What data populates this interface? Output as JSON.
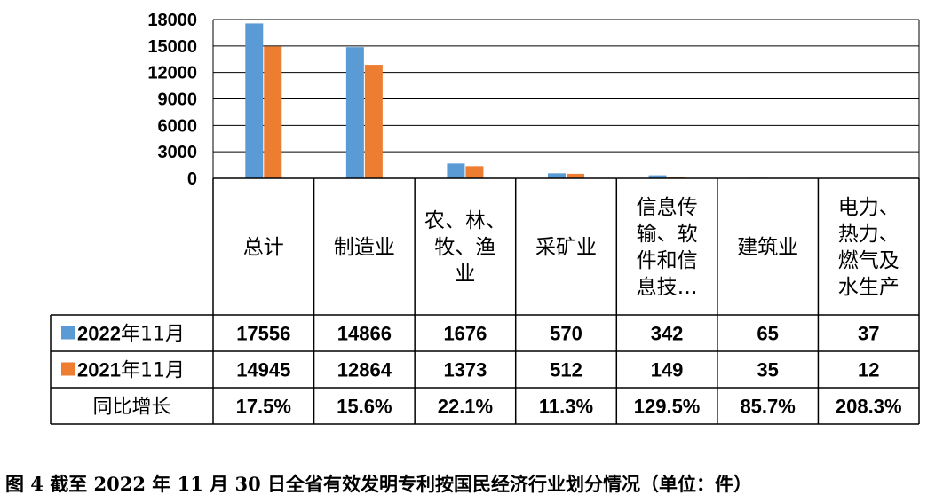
{
  "chart_data": {
    "type": "bar",
    "ylim": [
      0,
      18000
    ],
    "yticks": [
      "0",
      "3000",
      "6000",
      "9000",
      "12000",
      "15000",
      "18000"
    ],
    "categories": [
      [
        "总计"
      ],
      [
        "制造业"
      ],
      [
        "农、林、",
        "牧、渔",
        "业"
      ],
      [
        "采矿业"
      ],
      [
        "信息传",
        "输、软",
        "件和信",
        "息技…"
      ],
      [
        "建筑业"
      ],
      [
        "电力、",
        "热力、",
        "燃气及",
        "水生产"
      ]
    ],
    "series": [
      {
        "name": "2022年11月",
        "color": "#5b9bd5",
        "values": [
          17556,
          14866,
          1676,
          570,
          342,
          65,
          37
        ]
      },
      {
        "name": "2021年11月",
        "color": "#ed7d31",
        "values": [
          14945,
          12864,
          1373,
          512,
          149,
          35,
          12
        ]
      }
    ],
    "growth_row": {
      "label": "同比增长",
      "values": [
        "17.5%",
        "15.6%",
        "22.1%",
        "11.3%",
        "129.5%",
        "85.7%",
        "208.3%"
      ]
    },
    "grid": true,
    "legend": "table-rows"
  },
  "caption": "图 4    截至 2022 年 11 月 30 日全省有效发明专利按国民经济行业划分情况（单位：件）"
}
